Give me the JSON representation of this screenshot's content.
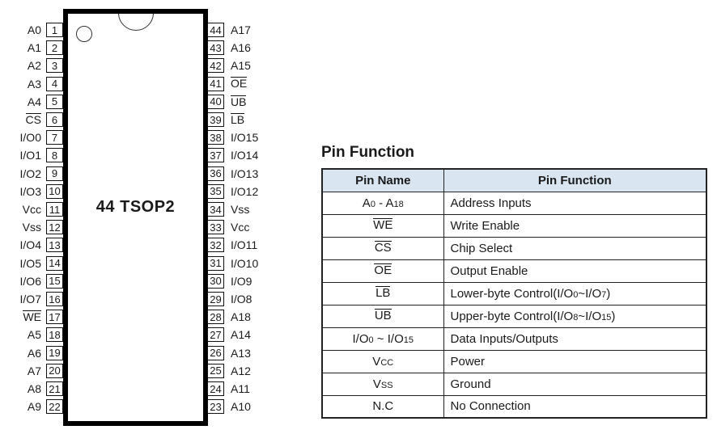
{
  "colors": {
    "header_bg": "#d9e5f1",
    "border": "#222222",
    "chip_border": "#000000",
    "text": "#1a1a1a"
  },
  "chip": {
    "label": "44 TSOP2",
    "pin1_indicator": "dot",
    "top_marker": "notch-semicircle",
    "left_pins": [
      {
        "num": "1",
        "name": "A0",
        "overline": false
      },
      {
        "num": "2",
        "name": "A1",
        "overline": false
      },
      {
        "num": "3",
        "name": "A2",
        "overline": false
      },
      {
        "num": "4",
        "name": "A3",
        "overline": false
      },
      {
        "num": "5",
        "name": "A4",
        "overline": false
      },
      {
        "num": "6",
        "name": "CS",
        "overline": true
      },
      {
        "num": "7",
        "name": "I/O0",
        "overline": false
      },
      {
        "num": "8",
        "name": "I/O1",
        "overline": false
      },
      {
        "num": "9",
        "name": "I/O2",
        "overline": false
      },
      {
        "num": "10",
        "name": "I/O3",
        "overline": false
      },
      {
        "num": "11",
        "name": "Vcc",
        "overline": false
      },
      {
        "num": "12",
        "name": "Vss",
        "overline": false
      },
      {
        "num": "13",
        "name": "I/O4",
        "overline": false
      },
      {
        "num": "14",
        "name": "I/O5",
        "overline": false
      },
      {
        "num": "15",
        "name": "I/O6",
        "overline": false
      },
      {
        "num": "16",
        "name": "I/O7",
        "overline": false
      },
      {
        "num": "17",
        "name": "WE",
        "overline": true
      },
      {
        "num": "18",
        "name": "A5",
        "overline": false
      },
      {
        "num": "19",
        "name": "A6",
        "overline": false
      },
      {
        "num": "20",
        "name": "A7",
        "overline": false
      },
      {
        "num": "21",
        "name": "A8",
        "overline": false
      },
      {
        "num": "22",
        "name": "A9",
        "overline": false
      }
    ],
    "right_pins": [
      {
        "num": "44",
        "name": "A17",
        "overline": false
      },
      {
        "num": "43",
        "name": "A16",
        "overline": false
      },
      {
        "num": "42",
        "name": "A15",
        "overline": false
      },
      {
        "num": "41",
        "name": "OE",
        "overline": true
      },
      {
        "num": "40",
        "name": "UB",
        "overline": true
      },
      {
        "num": "39",
        "name": "LB",
        "overline": true
      },
      {
        "num": "38",
        "name": "I/O15",
        "overline": false
      },
      {
        "num": "37",
        "name": "I/O14",
        "overline": false
      },
      {
        "num": "36",
        "name": "I/O13",
        "overline": false
      },
      {
        "num": "35",
        "name": "I/O12",
        "overline": false
      },
      {
        "num": "34",
        "name": "Vss",
        "overline": false
      },
      {
        "num": "33",
        "name": "Vcc",
        "overline": false
      },
      {
        "num": "32",
        "name": "I/O11",
        "overline": false
      },
      {
        "num": "31",
        "name": "I/O10",
        "overline": false
      },
      {
        "num": "30",
        "name": "I/O9",
        "overline": false
      },
      {
        "num": "29",
        "name": "I/O8",
        "overline": false
      },
      {
        "num": "28",
        "name": "A18",
        "overline": false
      },
      {
        "num": "27",
        "name": "A14",
        "overline": false
      },
      {
        "num": "26",
        "name": "A13",
        "overline": false
      },
      {
        "num": "25",
        "name": "A12",
        "overline": false
      },
      {
        "num": "24",
        "name": "A11",
        "overline": false
      },
      {
        "num": "23",
        "name": "A10",
        "overline": false
      }
    ]
  },
  "table": {
    "title": "Pin Function",
    "headers": [
      "Pin Name",
      "Pin Function"
    ],
    "rows": [
      {
        "name": "A{0} - A{18}",
        "overline": false,
        "function": "Address Inputs"
      },
      {
        "name": "WE",
        "overline": true,
        "function": "Write Enable"
      },
      {
        "name": "CS",
        "overline": true,
        "function": "Chip Select"
      },
      {
        "name": "OE",
        "overline": true,
        "function": "Output Enable"
      },
      {
        "name": "LB",
        "overline": true,
        "function": "Lower-byte Control(I/O{0}~I/O{7})"
      },
      {
        "name": "UB",
        "overline": true,
        "function": "Upper-byte Control(I/O{8}~I/O{15})"
      },
      {
        "name": "I/O{0} ~ I/O{15}",
        "overline": false,
        "function": "Data Inputs/Outputs"
      },
      {
        "name": "V{CC}",
        "overline": false,
        "function": "Power"
      },
      {
        "name": "V{SS}",
        "overline": false,
        "function": "Ground"
      },
      {
        "name": "N.C",
        "overline": false,
        "function": "No Connection"
      }
    ]
  }
}
